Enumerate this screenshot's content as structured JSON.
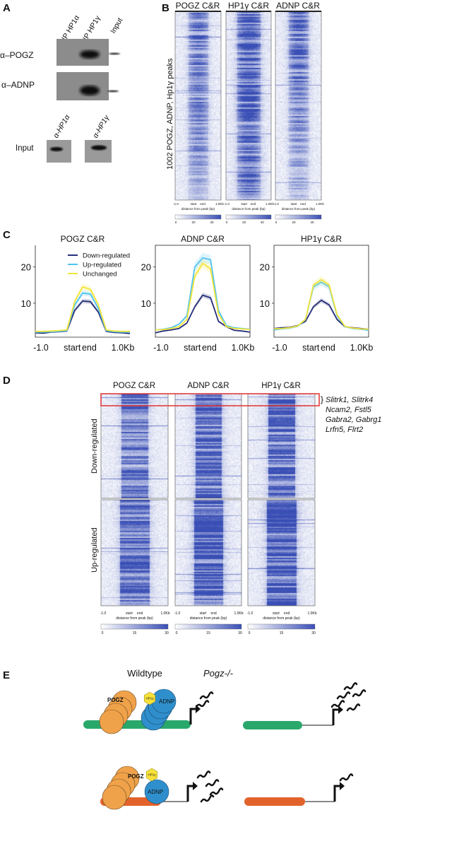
{
  "panel_labels": {
    "a": "A",
    "b": "B",
    "c": "C",
    "d": "D",
    "e": "E"
  },
  "panel_a": {
    "lanes": [
      "IP HP1α",
      "IP HP1γ",
      "Input"
    ],
    "rows": [
      "α–POGZ",
      "α–ADNP"
    ],
    "input_label": "Input",
    "input_blots": [
      "α-HP1α",
      "α-HP1γ"
    ]
  },
  "panel_b": {
    "titles": [
      "POGZ C&R",
      "HP1γ C&R",
      "ADNP C&R"
    ],
    "ylabel": "1002 POGZ, ADNP, Hp1γ peaks",
    "xticks": [
      "-1.0",
      "start",
      "end",
      "1.0Kb"
    ],
    "xlabel": "distance from peak (bp)",
    "colorbar_ticks": [
      "0",
      "20",
      "40"
    ],
    "colormap": [
      "#ffffff",
      "#3a4fb5"
    ]
  },
  "chart_data": [
    {
      "type": "line",
      "title": "POGZ C&R",
      "xticks": [
        "-1.0",
        "start",
        "end",
        "1.0Kb"
      ],
      "yticks": [
        10,
        20
      ],
      "ylim": [
        0.6,
        26
      ],
      "legend": "top-right",
      "series": [
        {
          "name": "Down-regulated",
          "color": "#27307a",
          "values": [
            1.8,
            1.7,
            2.0,
            2.1,
            2.3,
            8.0,
            10.6,
            10.4,
            7.5,
            2.2,
            1.9,
            1.8,
            1.6
          ]
        },
        {
          "name": "Up-regulated",
          "color": "#4fc3ef",
          "values": [
            2.0,
            2.0,
            2.1,
            2.2,
            2.4,
            9.5,
            12.8,
            12.5,
            8.5,
            2.4,
            2.1,
            2.0,
            2.0
          ]
        },
        {
          "name": "Unchanged",
          "color": "#f3e43a",
          "values": [
            2.2,
            2.2,
            2.3,
            2.4,
            2.6,
            10.5,
            14.5,
            13.8,
            9.5,
            2.6,
            2.3,
            2.2,
            2.2
          ]
        }
      ]
    },
    {
      "type": "line",
      "title": "ADNP C&R",
      "xticks": [
        "-1.0",
        "start",
        "end",
        "1.0Kb"
      ],
      "yticks": [
        10,
        20
      ],
      "ylim": [
        0.6,
        26
      ],
      "series": [
        {
          "name": "Down-regulated",
          "color": "#27307a",
          "values": [
            1.8,
            2.3,
            2.6,
            3.0,
            4.5,
            9.0,
            12.2,
            11.5,
            5.0,
            3.5,
            2.5,
            2.3,
            2.0
          ]
        },
        {
          "name": "Up-regulated",
          "color": "#4fc3ef",
          "values": [
            2.6,
            2.8,
            3.2,
            4.2,
            6.5,
            20.0,
            22.5,
            22.0,
            8.0,
            3.8,
            3.2,
            3.0,
            2.8
          ]
        },
        {
          "name": "Unchanged",
          "color": "#f3e43a",
          "values": [
            2.6,
            2.7,
            3.0,
            3.5,
            5.5,
            17.5,
            21.0,
            19.5,
            7.0,
            3.5,
            3.0,
            2.9,
            2.7
          ]
        }
      ]
    },
    {
      "type": "line",
      "title": "HP1γ C&R",
      "xticks": [
        "-1.0",
        "start",
        "end",
        "1.0Kb"
      ],
      "yticks": [
        10,
        20
      ],
      "ylim": [
        0.6,
        26
      ],
      "series": [
        {
          "name": "Down-regulated",
          "color": "#27307a",
          "values": [
            3.0,
            3.2,
            3.3,
            3.8,
            5.0,
            9.0,
            10.8,
            9.5,
            5.5,
            3.5,
            3.2,
            3.0,
            2.8
          ]
        },
        {
          "name": "Up-regulated",
          "color": "#4fc3ef",
          "values": [
            2.6,
            2.9,
            3.1,
            3.6,
            5.5,
            14.5,
            15.8,
            14.5,
            6.5,
            3.5,
            3.0,
            2.8,
            2.5
          ]
        },
        {
          "name": "Unchanged",
          "color": "#f3e43a",
          "values": [
            2.9,
            3.0,
            3.2,
            3.7,
            5.6,
            15.0,
            16.5,
            15.0,
            6.8,
            3.6,
            3.1,
            2.9,
            2.8
          ]
        }
      ]
    }
  ],
  "panel_d": {
    "titles": [
      "POGZ C&R",
      "ADNP C&R",
      "HP1γ C&R"
    ],
    "groups": [
      "Down-regulated",
      "Up-regulated"
    ],
    "genes": [
      "Slitrk1, Slitrk4",
      "Ncam2, Fstl5",
      "Gabra2, Gabrg1",
      "Lrfn5,  Flrt2"
    ],
    "highlight_color": "#e03030",
    "xticks": [
      "-1.0",
      "start",
      "end",
      "1.0Kb"
    ],
    "xlabel": "distance from peak (bp)",
    "colorbar_ticks": [
      "0",
      "15",
      "30"
    ]
  },
  "panel_e": {
    "conditions": [
      "Wildtype",
      "Pogz-/-"
    ],
    "proteins": {
      "pogz": "POGZ",
      "hp1": "HP1γ",
      "adnp": "ADNP"
    },
    "colors": {
      "pogz": "#f0a24a",
      "adnp": "#2f8fcc",
      "hp1": "#f7e13a",
      "gene_top": "#2aa86c",
      "gene_bottom": "#e2622c"
    }
  }
}
